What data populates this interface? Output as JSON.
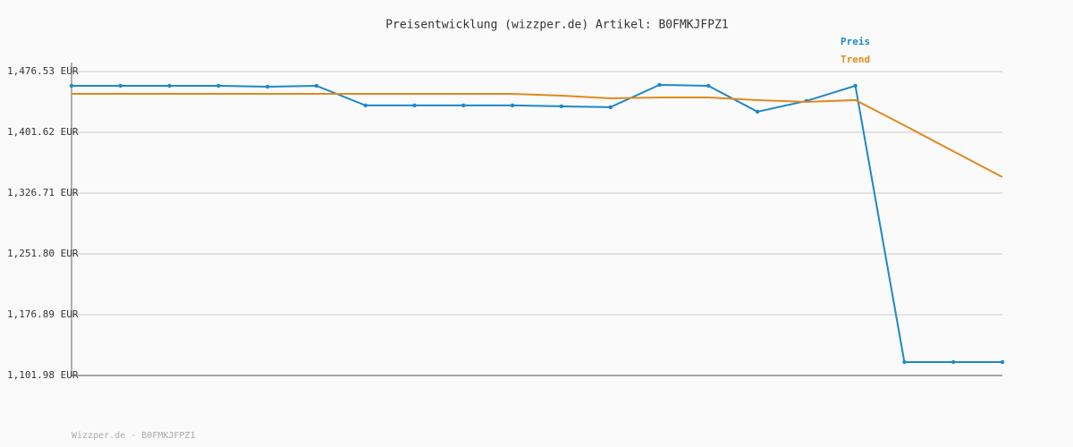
{
  "chart_data": {
    "type": "line",
    "title": "Preisentwicklung (wizzper.de) Artikel: B0FMKJFPZ1",
    "footer": "Wizzper.de - B0FMKJFPZ1",
    "categories": [
      null,
      null,
      null,
      null,
      null,
      null,
      null,
      null,
      null,
      null,
      null,
      null,
      null,
      null,
      null,
      null,
      null,
      null,
      null,
      null
    ],
    "series": [
      {
        "name": "Preis",
        "color": "#1e88c8",
        "markers": true,
        "values": [
          1458.9,
          1458.9,
          1458.9,
          1458.9,
          1457.8,
          1458.9,
          1434.7,
          1434.7,
          1434.7,
          1434.7,
          1433.6,
          1432.5,
          1460.0,
          1458.9,
          1427.0,
          1440.2,
          1458.9,
          1118.5,
          1118.5,
          1118.5
        ]
      },
      {
        "name": "Trend",
        "color": "#e08a1e",
        "markers": false,
        "values": [
          1449.0,
          1449.0,
          1449.0,
          1449.0,
          1449.0,
          1449.0,
          1449.0,
          1449.0,
          1449.0,
          1449.0,
          1446.8,
          1443.5,
          1444.6,
          1444.6,
          1441.3,
          1439.1,
          1441.3,
          1410.1,
          1378.2,
          1346.5
        ]
      }
    ],
    "ylim": [
      1101.98,
      1487.5
    ],
    "yticks": [
      {
        "value": 1101.98,
        "label": "1,101.98 EUR"
      },
      {
        "value": 1176.89,
        "label": "1,176.89 EUR"
      },
      {
        "value": 1251.8,
        "label": "1,251.80 EUR"
      },
      {
        "value": 1326.71,
        "label": "1,326.71 EUR"
      },
      {
        "value": 1401.62,
        "label": "1,401.62 EUR"
      },
      {
        "value": 1476.53,
        "label": "1,476.53 EUR"
      }
    ],
    "grid": true,
    "legend": "top-right"
  }
}
